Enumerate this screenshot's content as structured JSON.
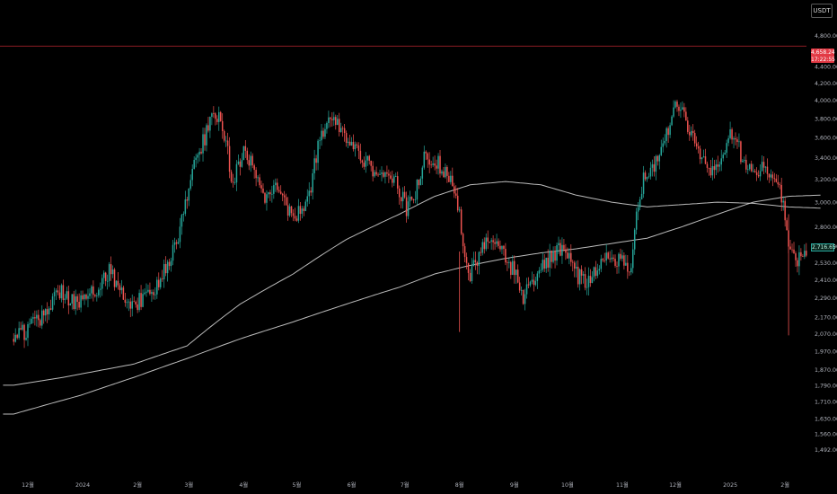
{
  "toolbar": {
    "currency_label": "USDT"
  },
  "price_marker": {
    "price": "4,658.24",
    "countdown": "17:22:55",
    "color": "#e23a45"
  },
  "last_price": {
    "price": "2,716.65",
    "color": "#26a69a"
  },
  "colors": {
    "background": "#000000",
    "up": "#26a69a",
    "down": "#ef5350",
    "moving_average": "#cfcfcf",
    "axis_text": "#b2b5be",
    "alert_line": "#8b1d24"
  },
  "chart_data": {
    "type": "candlestick",
    "title": "",
    "xlabel": "",
    "ylabel": "",
    "y_scale": "log",
    "ylim": [
      1450,
      5200
    ],
    "grid": false,
    "y_ticks": [
      {
        "value": 4800,
        "label": "4,800.00"
      },
      {
        "value": 4400,
        "label": "4,400.00"
      },
      {
        "value": 4200,
        "label": "4,200.00"
      },
      {
        "value": 4000,
        "label": "4,000.00"
      },
      {
        "value": 3800,
        "label": "3,800.00"
      },
      {
        "value": 3600,
        "label": "3,600.00"
      },
      {
        "value": 3400,
        "label": "3,400.00"
      },
      {
        "value": 3200,
        "label": "3,200.00"
      },
      {
        "value": 3000,
        "label": "3,000.00"
      },
      {
        "value": 2800,
        "label": "2,800.00"
      },
      {
        "value": 2650,
        "label": "2,650.00"
      },
      {
        "value": 2530,
        "label": "2,530.00"
      },
      {
        "value": 2410,
        "label": "2,410.00"
      },
      {
        "value": 2290,
        "label": "2,290.00"
      },
      {
        "value": 2170,
        "label": "2,170.00"
      },
      {
        "value": 2070,
        "label": "2,070.00"
      },
      {
        "value": 1970,
        "label": "1,970.00"
      },
      {
        "value": 1870,
        "label": "1,870.00"
      },
      {
        "value": 1790,
        "label": "1,790.00"
      },
      {
        "value": 1710,
        "label": "1,710.00"
      },
      {
        "value": 1630,
        "label": "1,630.00"
      },
      {
        "value": 1560,
        "label": "1,560.00"
      },
      {
        "value": 1492,
        "label": "1,492.00"
      }
    ],
    "x_ticks": [
      {
        "index": 0,
        "label": "12월"
      },
      {
        "index": 31,
        "label": "2024"
      },
      {
        "index": 62,
        "label": "2월"
      },
      {
        "index": 91,
        "label": "3월"
      },
      {
        "index": 122,
        "label": "4월"
      },
      {
        "index": 152,
        "label": "5월"
      },
      {
        "index": 183,
        "label": "6월"
      },
      {
        "index": 213,
        "label": "7월"
      },
      {
        "index": 244,
        "label": "8월"
      },
      {
        "index": 275,
        "label": "9월"
      },
      {
        "index": 305,
        "label": "10월"
      },
      {
        "index": 336,
        "label": "11월"
      },
      {
        "index": 366,
        "label": "12월"
      },
      {
        "index": 397,
        "label": "2025"
      },
      {
        "index": 428,
        "label": "2월"
      }
    ],
    "horizontal_lines": [
      {
        "value": 4658.24
      }
    ],
    "close_anchors": [
      [
        -8,
        2040
      ],
      [
        0,
        2100
      ],
      [
        10,
        2200
      ],
      [
        18,
        2330
      ],
      [
        26,
        2260
      ],
      [
        34,
        2300
      ],
      [
        40,
        2370
      ],
      [
        46,
        2460
      ],
      [
        52,
        2350
      ],
      [
        58,
        2250
      ],
      [
        66,
        2280
      ],
      [
        74,
        2380
      ],
      [
        82,
        2600
      ],
      [
        88,
        2900
      ],
      [
        94,
        3300
      ],
      [
        100,
        3600
      ],
      [
        104,
        3900
      ],
      [
        108,
        3800
      ],
      [
        112,
        3550
      ],
      [
        116,
        3150
      ],
      [
        122,
        3500
      ],
      [
        128,
        3300
      ],
      [
        134,
        3050
      ],
      [
        140,
        3100
      ],
      [
        146,
        2950
      ],
      [
        152,
        2880
      ],
      [
        158,
        2980
      ],
      [
        166,
        3650
      ],
      [
        170,
        3820
      ],
      [
        178,
        3650
      ],
      [
        186,
        3450
      ],
      [
        194,
        3300
      ],
      [
        202,
        3300
      ],
      [
        208,
        3200
      ],
      [
        214,
        2950
      ],
      [
        218,
        3020
      ],
      [
        224,
        3380
      ],
      [
        230,
        3400
      ],
      [
        238,
        3200
      ],
      [
        242,
        3100
      ],
      [
        246,
        2650
      ],
      [
        250,
        2460
      ],
      [
        256,
        2600
      ],
      [
        262,
        2700
      ],
      [
        268,
        2630
      ],
      [
        274,
        2480
      ],
      [
        280,
        2300
      ],
      [
        286,
        2400
      ],
      [
        292,
        2520
      ],
      [
        298,
        2600
      ],
      [
        302,
        2650
      ],
      [
        308,
        2480
      ],
      [
        314,
        2400
      ],
      [
        320,
        2450
      ],
      [
        326,
        2560
      ],
      [
        332,
        2500
      ],
      [
        336,
        2560
      ],
      [
        340,
        2420
      ],
      [
        344,
        2900
      ],
      [
        348,
        3200
      ],
      [
        356,
        3400
      ],
      [
        362,
        3700
      ],
      [
        366,
        3900
      ],
      [
        372,
        3800
      ],
      [
        378,
        3450
      ],
      [
        386,
        3300
      ],
      [
        392,
        3350
      ],
      [
        398,
        3650
      ],
      [
        404,
        3400
      ],
      [
        410,
        3250
      ],
      [
        416,
        3300
      ],
      [
        422,
        3200
      ],
      [
        426,
        3050
      ],
      [
        430,
        2650
      ],
      [
        436,
        2550
      ],
      [
        442,
        2690
      ],
      [
        448,
        2717
      ]
    ],
    "series": [
      {
        "name": "",
        "type": "moving_average",
        "values_at": [
          [
            -8,
            1790
          ],
          [
            20,
            1830
          ],
          [
            60,
            1900
          ],
          [
            90,
            2000
          ],
          [
            120,
            2250
          ],
          [
            150,
            2450
          ],
          [
            180,
            2700
          ],
          [
            210,
            2900
          ],
          [
            230,
            3050
          ],
          [
            250,
            3150
          ],
          [
            270,
            3180
          ],
          [
            290,
            3150
          ],
          [
            310,
            3060
          ],
          [
            330,
            3000
          ],
          [
            350,
            2960
          ],
          [
            370,
            2980
          ],
          [
            390,
            3000
          ],
          [
            410,
            2990
          ],
          [
            430,
            2960
          ],
          [
            448,
            2950
          ]
        ]
      },
      {
        "name": "",
        "type": "moving_average",
        "values_at": [
          [
            -8,
            1650
          ],
          [
            30,
            1740
          ],
          [
            60,
            1830
          ],
          [
            90,
            1930
          ],
          [
            120,
            2040
          ],
          [
            150,
            2140
          ],
          [
            180,
            2250
          ],
          [
            210,
            2360
          ],
          [
            230,
            2450
          ],
          [
            250,
            2510
          ],
          [
            270,
            2560
          ],
          [
            290,
            2600
          ],
          [
            310,
            2630
          ],
          [
            330,
            2670
          ],
          [
            350,
            2710
          ],
          [
            370,
            2800
          ],
          [
            390,
            2900
          ],
          [
            410,
            3000
          ],
          [
            430,
            3050
          ],
          [
            448,
            3060
          ]
        ]
      }
    ]
  }
}
